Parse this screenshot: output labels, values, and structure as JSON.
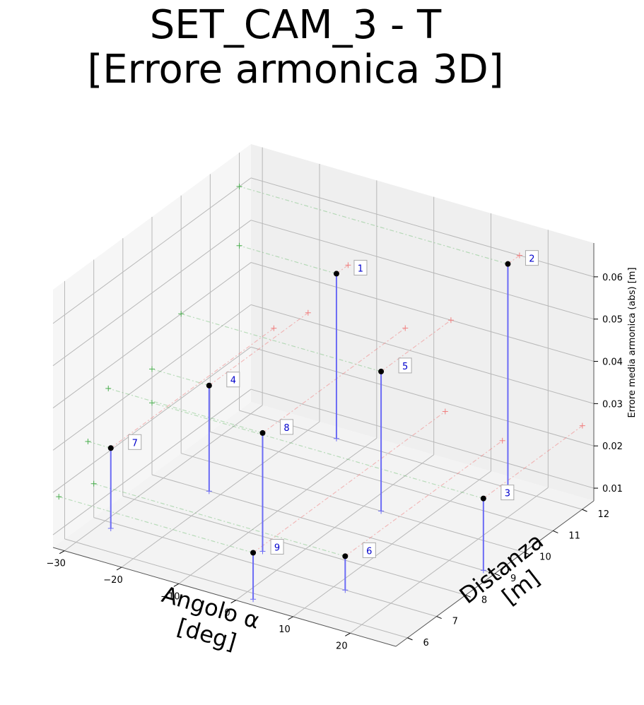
{
  "chart_data": {
    "type": "scatter",
    "title_line1": "SET_CAM_3 - T",
    "title_line2": "[Errore armonica 3D]",
    "xlabel_line1": "Angolo α",
    "xlabel_line2": "[deg]",
    "ylabel_line1": "Distanza",
    "ylabel_line2": "[m]",
    "zlabel": "Errore media armonica (abs) [m]",
    "xlim": [
      -32,
      28
    ],
    "ylim": [
      5.6,
      12.4
    ],
    "zlim": [
      0.007,
      0.068
    ],
    "x_ticks": [
      "−30",
      "−20",
      "−10",
      "0",
      "10",
      "20"
    ],
    "x_tick_values": [
      -30,
      -20,
      -10,
      0,
      10,
      20
    ],
    "y_ticks": [
      "6",
      "7",
      "8",
      "9",
      "10",
      "11",
      "12"
    ],
    "y_tick_values": [
      6,
      7,
      8,
      9,
      10,
      11,
      12
    ],
    "z_ticks": [
      "0.01",
      "0.02",
      "0.03",
      "0.04",
      "0.05",
      "0.06"
    ],
    "z_tick_values": [
      0.01,
      0.02,
      0.03,
      0.04,
      0.05,
      0.06
    ],
    "grid": true,
    "colors": {
      "stem": "#6b6bf5",
      "point": "#000000",
      "label_text": "#0000cc",
      "red_proj": "#f08080",
      "green_proj": "#4caf50"
    },
    "points": [
      {
        "label": "1",
        "x": -15,
        "y": 12,
        "z": 0.046
      },
      {
        "label": "2",
        "x": 15,
        "y": 12,
        "z": 0.06
      },
      {
        "label": "3",
        "x": 26,
        "y": 9,
        "z": 0.024
      },
      {
        "label": "4",
        "x": -22,
        "y": 9,
        "z": 0.032
      },
      {
        "label": "5",
        "x": 3,
        "y": 10,
        "z": 0.04
      },
      {
        "label": "6",
        "x": 12,
        "y": 7,
        "z": 0.015
      },
      {
        "label": "7",
        "x": -28,
        "y": 6.8,
        "z": 0.026
      },
      {
        "label": "8",
        "x": -5,
        "y": 7.5,
        "z": 0.035
      },
      {
        "label": "9",
        "x": 2,
        "y": 5.8,
        "z": 0.018
      }
    ]
  }
}
